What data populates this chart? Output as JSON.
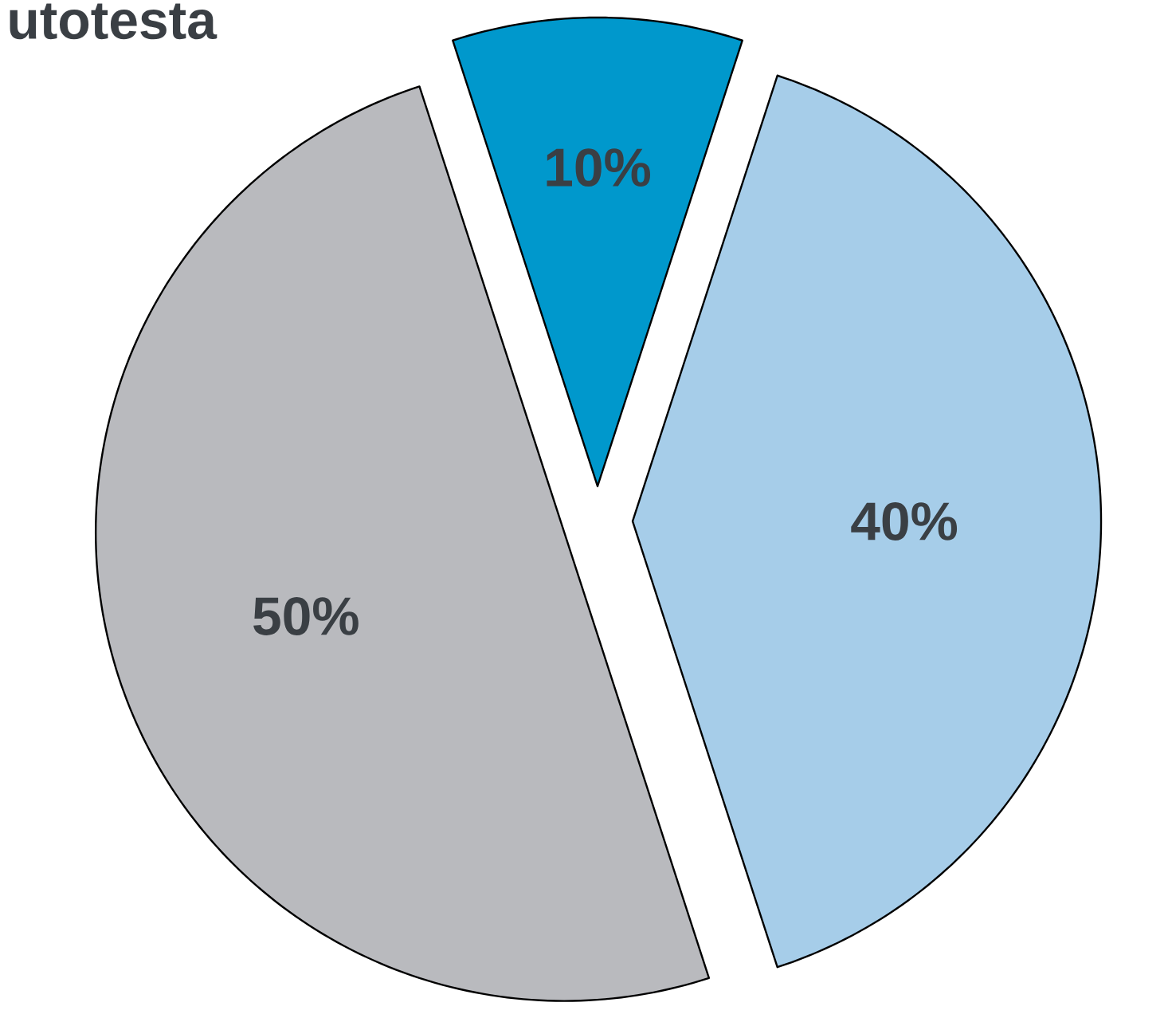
{
  "chart_data": {
    "type": "pie",
    "categories": [
      null,
      null,
      null
    ],
    "values": [
      10,
      40,
      50
    ],
    "colors": [
      "#0098cc",
      "#a6cde9",
      "#b9babe"
    ],
    "value_labels": [
      "10%",
      "40%",
      "50%"
    ],
    "annotations": [
      "utotesta"
    ]
  }
}
